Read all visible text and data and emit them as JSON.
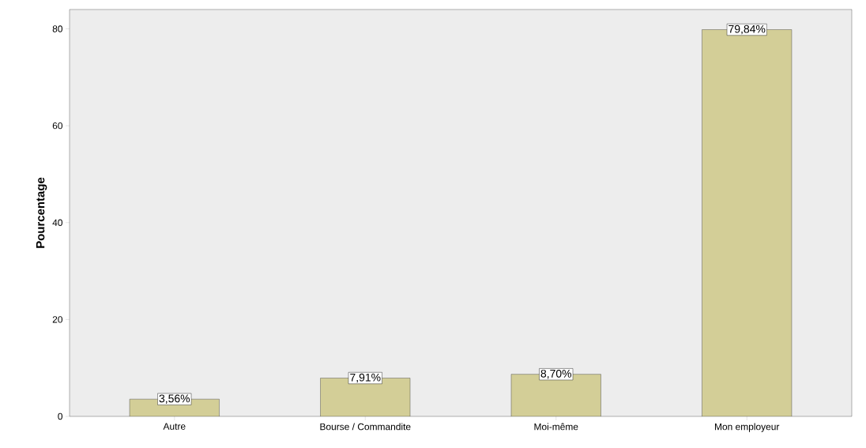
{
  "chart_data": {
    "type": "bar",
    "ylabel": "Pourcentage",
    "categories": [
      "Autre",
      "Bourse / Commandite",
      "Moi-même",
      "Mon employeur"
    ],
    "values": [
      3.56,
      7.91,
      8.7,
      79.84
    ],
    "value_labels": [
      "3,56%",
      "7,91%",
      "8,70%",
      "79,84%"
    ],
    "color": "#d3ce97",
    "ylim": [
      0,
      84
    ],
    "yticks": [
      0,
      20,
      40,
      60,
      80
    ],
    "grid": false
  }
}
